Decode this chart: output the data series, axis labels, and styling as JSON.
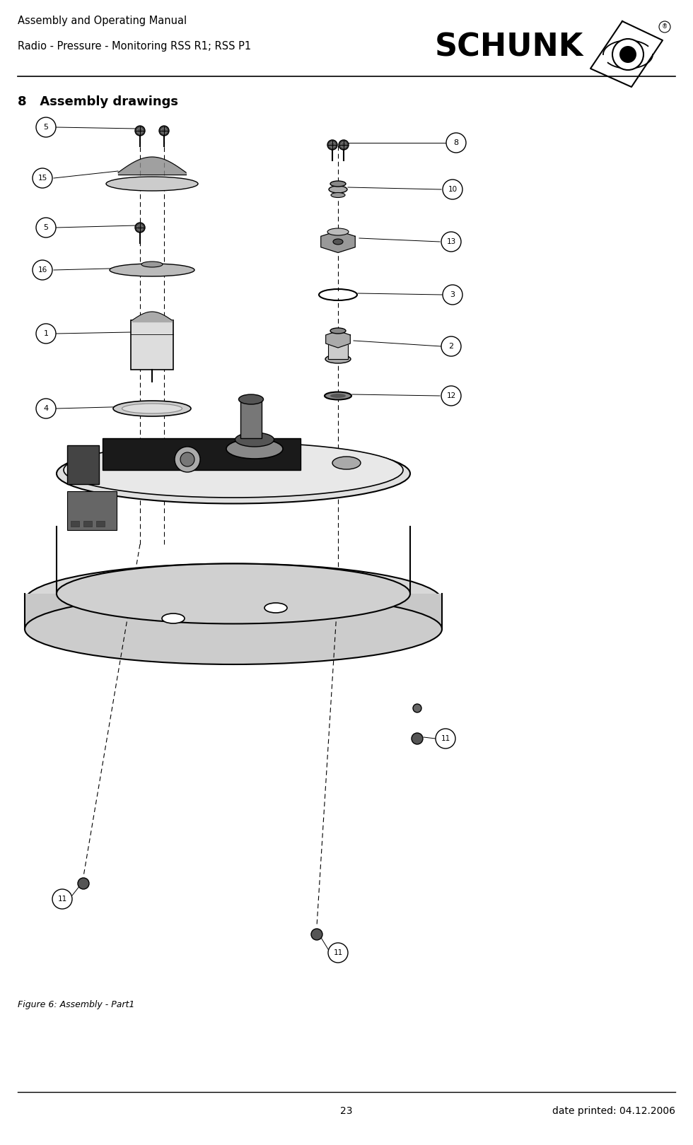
{
  "header_line1": "Assembly and Operating Manual",
  "header_line2": "Radio - Pressure - Monitoring RSS R1; RSS P1",
  "section_title": "8   Assembly drawings",
  "figure_caption": "Figure 6: Assembly - Part1",
  "footer_page": "23",
  "footer_date": "date printed: 04.12.2006",
  "bg_color": "#ffffff",
  "text_color": "#000000",
  "header_font_size": 10.5,
  "section_font_size": 13,
  "footer_font_size": 10
}
